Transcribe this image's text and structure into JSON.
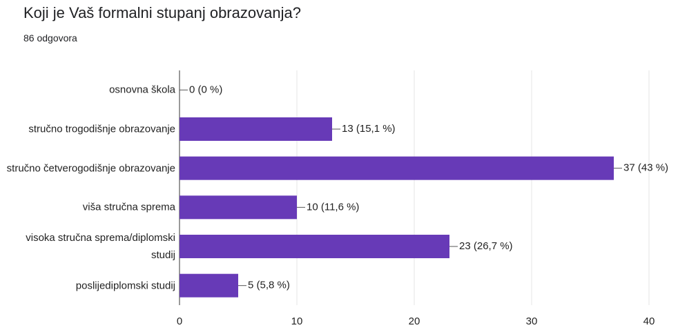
{
  "chart_data": {
    "type": "bar",
    "orientation": "horizontal",
    "title": "Koji je Vaš formalni stupanj obrazovanja?",
    "subtitle": "86 odgovora",
    "categories": [
      "osnovna škola",
      "stručno trogodišnje obrazovanje",
      "stručno četverogodišnje obrazovanje",
      "viša stručna sprema",
      "visoka stručna sprema/diplomski studij",
      "poslijediplomski studij"
    ],
    "values": [
      0,
      13,
      37,
      10,
      23,
      5
    ],
    "value_labels": [
      "0 (0 %)",
      "13 (15,1 %)",
      "37 (43 %)",
      "10 (11,6 %)",
      "23 (26,7 %)",
      "5 (5,8 %)"
    ],
    "color": "#673ab7",
    "xlim": [
      0,
      40
    ],
    "xticks": [
      0,
      10,
      20,
      30,
      40
    ],
    "grid": true
  }
}
